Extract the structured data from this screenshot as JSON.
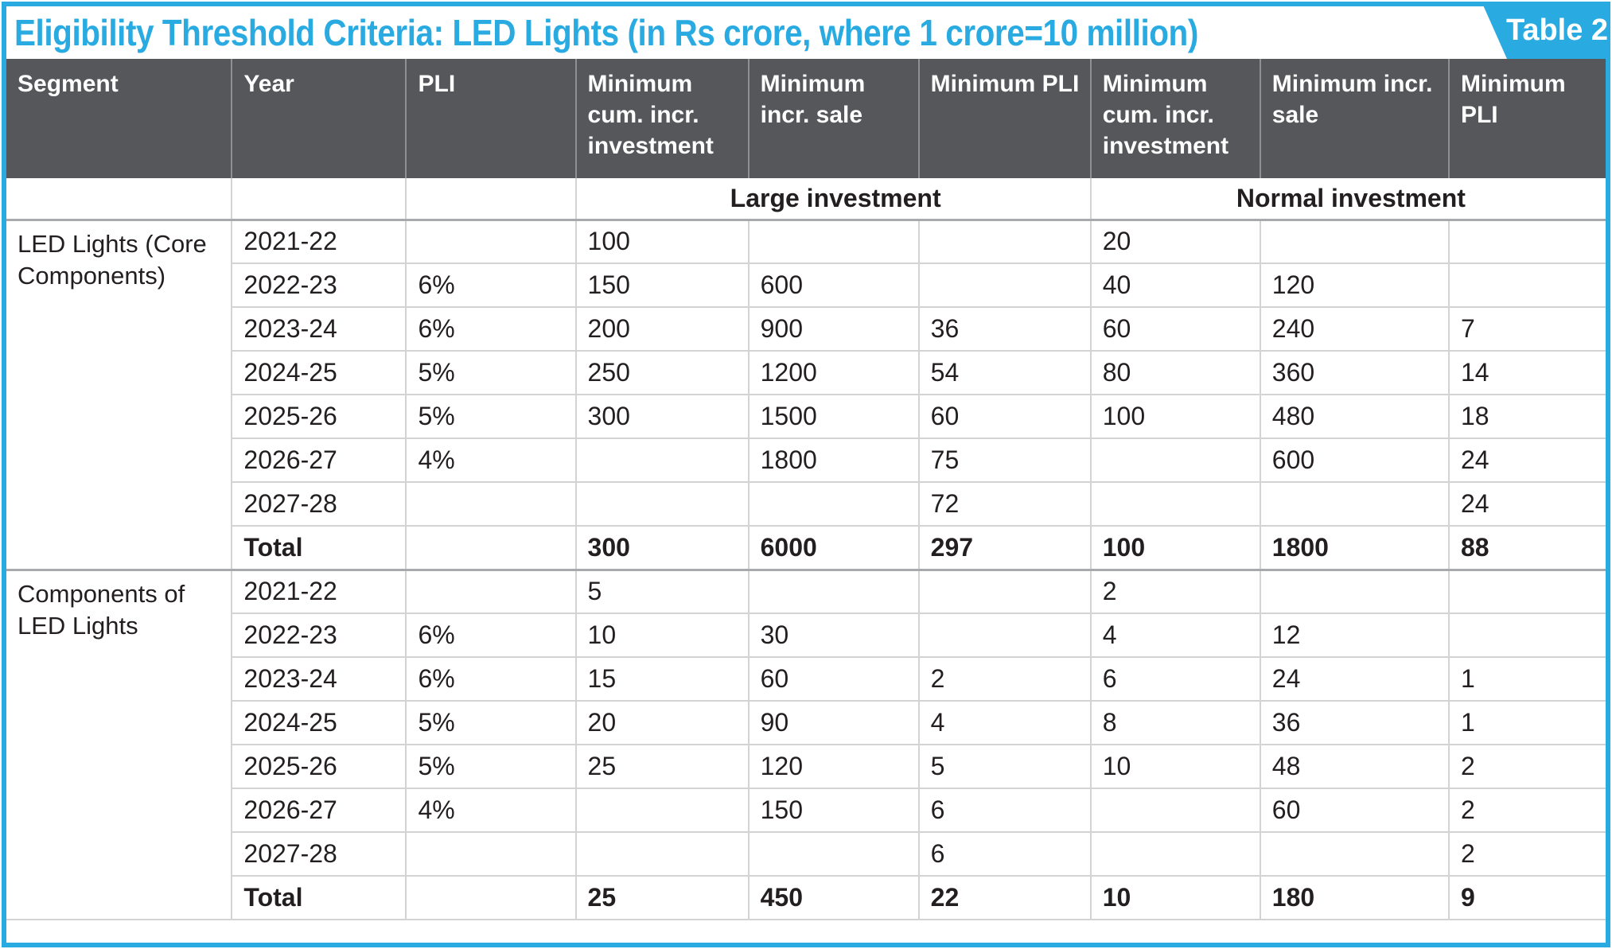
{
  "title": "Eligibility Threshold Criteria: LED Lights (in Rs crore, where 1 crore=10 million)",
  "badge": {
    "label": "Table 2"
  },
  "colors": {
    "accent_cyan": "#29abe2",
    "header_gray": "#56575b",
    "text_black": "#231f20",
    "border_light": "#d1d3d4",
    "border_medium": "#a7a9ac"
  },
  "chart_data": {
    "type": "table",
    "title": "Eligibility Threshold Criteria: LED Lights (in Rs crore, where 1 crore=10 million)",
    "columns": [
      "Segment",
      "Year",
      "PLI",
      "Minimum cum. incr. investment",
      "Minimum incr. sale",
      "Minimum PLI",
      "Minimum cum. incr. investment",
      "Minimum incr. sale",
      "Minimum PLI"
    ],
    "column_groups": [
      {
        "label": "Large investment",
        "columns": [
          4,
          5,
          6
        ]
      },
      {
        "label": "Normal investment",
        "columns": [
          7,
          8,
          9
        ]
      }
    ],
    "groups": [
      {
        "segment": "LED Lights (Core Components)",
        "rows": [
          [
            "2021-22",
            "",
            "100",
            "",
            "",
            "20",
            "",
            ""
          ],
          [
            "2022-23",
            "6%",
            "150",
            "600",
            "",
            "40",
            "120",
            ""
          ],
          [
            "2023-24",
            "6%",
            "200",
            "900",
            "36",
            "60",
            "240",
            "7"
          ],
          [
            "2024-25",
            "5%",
            "250",
            "1200",
            "54",
            "80",
            "360",
            "14"
          ],
          [
            "2025-26",
            "5%",
            "300",
            "1500",
            "60",
            "100",
            "480",
            "18"
          ],
          [
            "2026-27",
            "4%",
            "",
            "1800",
            "75",
            "",
            "600",
            "24"
          ],
          [
            "2027-28",
            "",
            "",
            "",
            "72",
            "",
            "",
            "24"
          ],
          [
            "Total",
            "",
            "300",
            "6000",
            "297",
            "100",
            "1800",
            "88"
          ]
        ]
      },
      {
        "segment": "Components of LED Lights",
        "rows": [
          [
            "2021-22",
            "",
            "5",
            "",
            "",
            "2",
            "",
            ""
          ],
          [
            "2022-23",
            "6%",
            "10",
            "30",
            "",
            "4",
            "12",
            ""
          ],
          [
            "2023-24",
            "6%",
            "15",
            "60",
            "2",
            "6",
            "24",
            "1"
          ],
          [
            "2024-25",
            "5%",
            "20",
            "90",
            "4",
            "8",
            "36",
            "1"
          ],
          [
            "2025-26",
            "5%",
            "25",
            "120",
            "5",
            "10",
            "48",
            "2"
          ],
          [
            "2026-27",
            "4%",
            "",
            "150",
            "6",
            "",
            "60",
            "2"
          ],
          [
            "2027-28",
            "",
            "",
            "",
            "6",
            "",
            "",
            "2"
          ],
          [
            "Total",
            "",
            "25",
            "450",
            "22",
            "10",
            "180",
            "9"
          ]
        ]
      }
    ]
  }
}
